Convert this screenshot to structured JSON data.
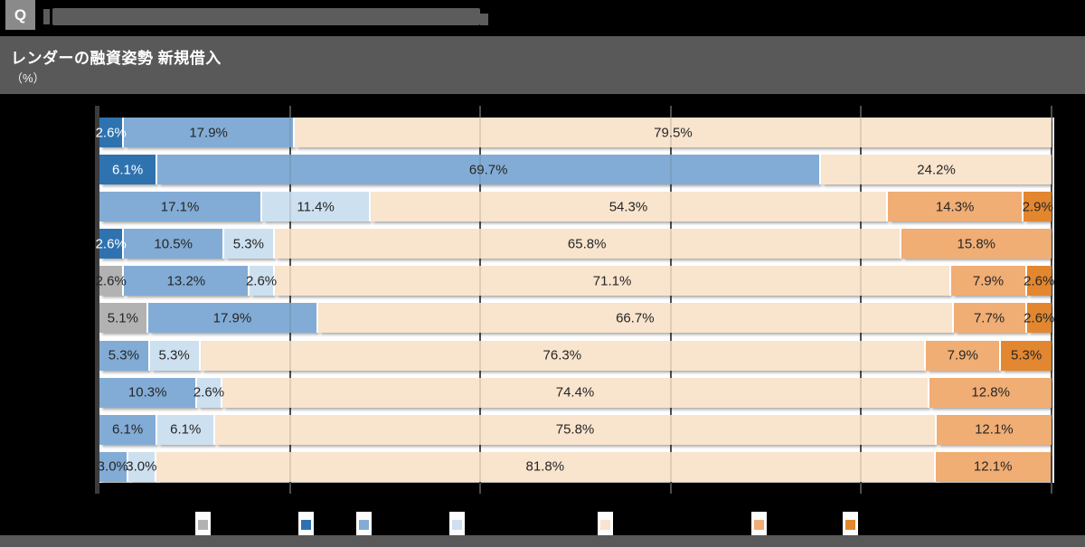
{
  "page": {
    "background": "#000000"
  },
  "header": {
    "q_label": "Q",
    "title": "レンダーの融資姿勢 新規借入",
    "subtitle": "（%）"
  },
  "colors": {
    "gray": "#b2b2b2",
    "dark_blue": "#2e73b0",
    "blue": "#82acd5",
    "light_blue": "#cde0f0",
    "cream": "#f9e4cd",
    "orange": "#f0ad74",
    "dark_orange": "#e2872f",
    "title_bar": "#595959",
    "q_badge": "#8a8a8a",
    "redacted_bar": "#5c5c5c",
    "axis": "#3c3c3c",
    "gridline": "#4d4d4d",
    "plot_background": "#ffffff",
    "footer": "#595959"
  },
  "chart_data": {
    "type": "bar",
    "orientation": "horizontal",
    "stacked": true,
    "title": "レンダーの融資姿勢 新規借入",
    "unit": "%",
    "x_axis": {
      "min": 0,
      "max": 100,
      "gridline_interval": 20,
      "gridlines_visible": true
    },
    "legend_position": "bottom",
    "legend_series": [
      "gray",
      "dark_blue",
      "blue",
      "light_blue",
      "cream",
      "orange",
      "dark_orange"
    ],
    "rows": [
      {
        "segments": [
          {
            "series": "dark_blue",
            "value": 2.6,
            "label": "2.6%"
          },
          {
            "series": "blue",
            "value": 17.9,
            "label": "17.9%"
          },
          {
            "series": "cream",
            "value": 79.5,
            "label": "79.5%"
          }
        ]
      },
      {
        "segments": [
          {
            "series": "dark_blue",
            "value": 6.1,
            "label": "6.1%"
          },
          {
            "series": "blue",
            "value": 69.7,
            "label": "69.7%"
          },
          {
            "series": "cream",
            "value": 24.2,
            "label": "24.2%"
          }
        ]
      },
      {
        "segments": [
          {
            "series": "blue",
            "value": 17.1,
            "label": "17.1%"
          },
          {
            "series": "light_blue",
            "value": 11.4,
            "label": "11.4%"
          },
          {
            "series": "cream",
            "value": 54.3,
            "label": "54.3%"
          },
          {
            "series": "orange",
            "value": 14.3,
            "label": "14.3%"
          },
          {
            "series": "dark_orange",
            "value": 2.9,
            "label": "2.9%"
          }
        ]
      },
      {
        "segments": [
          {
            "series": "dark_blue",
            "value": 2.6,
            "label": "2.6%"
          },
          {
            "series": "blue",
            "value": 10.5,
            "label": "10.5%"
          },
          {
            "series": "light_blue",
            "value": 5.3,
            "label": "5.3%"
          },
          {
            "series": "cream",
            "value": 65.8,
            "label": "65.8%"
          },
          {
            "series": "orange",
            "value": 15.8,
            "label": "15.8%"
          }
        ]
      },
      {
        "segments": [
          {
            "series": "gray",
            "value": 2.6,
            "label": "2.6%"
          },
          {
            "series": "blue",
            "value": 13.2,
            "label": "13.2%"
          },
          {
            "series": "light_blue",
            "value": 2.6,
            "label": "2.6%"
          },
          {
            "series": "cream",
            "value": 71.1,
            "label": "71.1%"
          },
          {
            "series": "orange",
            "value": 7.9,
            "label": "7.9%"
          },
          {
            "series": "dark_orange",
            "value": 2.6,
            "label": "2.6%"
          }
        ]
      },
      {
        "segments": [
          {
            "series": "gray",
            "value": 5.1,
            "label": "5.1%"
          },
          {
            "series": "blue",
            "value": 17.9,
            "label": "17.9%"
          },
          {
            "series": "cream",
            "value": 66.7,
            "label": "66.7%"
          },
          {
            "series": "orange",
            "value": 7.7,
            "label": "7.7%"
          },
          {
            "series": "dark_orange",
            "value": 2.6,
            "label": "2.6%"
          }
        ]
      },
      {
        "segments": [
          {
            "series": "blue",
            "value": 5.3,
            "label": "5.3%"
          },
          {
            "series": "light_blue",
            "value": 5.3,
            "label": "5.3%"
          },
          {
            "series": "cream",
            "value": 76.3,
            "label": "76.3%"
          },
          {
            "series": "orange",
            "value": 7.9,
            "label": "7.9%"
          },
          {
            "series": "dark_orange",
            "value": 5.3,
            "label": "5.3%"
          }
        ]
      },
      {
        "segments": [
          {
            "series": "blue",
            "value": 10.3,
            "label": "10.3%"
          },
          {
            "series": "light_blue",
            "value": 2.6,
            "label": "2.6%"
          },
          {
            "series": "cream",
            "value": 74.4,
            "label": "74.4%"
          },
          {
            "series": "orange",
            "value": 12.8,
            "label": "12.8%"
          }
        ]
      },
      {
        "segments": [
          {
            "series": "blue",
            "value": 6.1,
            "label": "6.1%"
          },
          {
            "series": "light_blue",
            "value": 6.1,
            "label": "6.1%"
          },
          {
            "series": "cream",
            "value": 75.8,
            "label": "75.8%"
          },
          {
            "series": "orange",
            "value": 12.1,
            "label": "12.1%"
          }
        ]
      },
      {
        "segments": [
          {
            "series": "blue",
            "value": 3.0,
            "label": "3.0%"
          },
          {
            "series": "light_blue",
            "value": 3.0,
            "label": "3.0%"
          },
          {
            "series": "cream",
            "value": 81.8,
            "label": "81.8%"
          },
          {
            "series": "orange",
            "value": 12.1,
            "label": "12.1%"
          }
        ]
      }
    ]
  }
}
